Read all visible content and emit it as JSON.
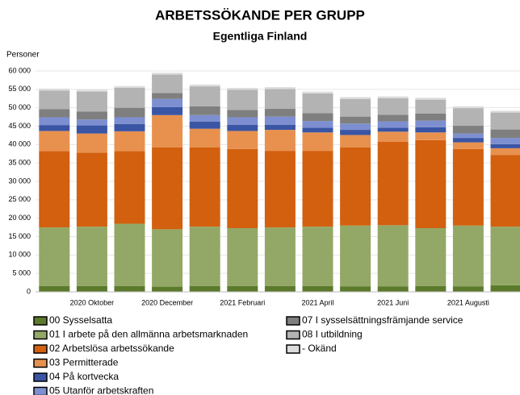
{
  "chart_data": {
    "type": "stacked-bar",
    "title": "ARBETSSÖKANDE PER GRUPP",
    "subtitle": "Egentliga Finland",
    "y_label": "Personer",
    "categories": [
      null,
      "2020 Oktober",
      null,
      "2020 December",
      null,
      "2021 Februari",
      null,
      "2021 April",
      null,
      "2021 Juni",
      null,
      "2021 Augusti",
      null
    ],
    "ylim": [
      0,
      60000
    ],
    "yticks": [
      0,
      {
        "value": 5000,
        "label": "5 000"
      },
      {
        "value": 10000,
        "label": "10 000"
      },
      {
        "value": 15000,
        "label": "15 000"
      },
      {
        "value": 20000,
        "label": "20 000"
      },
      {
        "value": 25000,
        "label": "25 000"
      },
      {
        "value": 30000,
        "label": "30 000"
      },
      {
        "value": 35000,
        "label": "35 000"
      },
      {
        "value": 40000,
        "label": "40 000"
      },
      {
        "value": 45000,
        "label": "45 000"
      },
      {
        "value": 50000,
        "label": "50 000"
      },
      {
        "value": 55000,
        "label": "55 000"
      },
      {
        "value": 60000,
        "label": "60 000"
      }
    ],
    "grid": true,
    "series": [
      {
        "name": "00 Sysselsatta",
        "color": "#5b7a2c",
        "values": [
          1600,
          1600,
          1600,
          1400,
          1600,
          1600,
          1600,
          1600,
          1500,
          1500,
          1600,
          1500,
          1800
        ]
      },
      {
        "name": "01 I arbete på den allmänna arbetsmarknaden",
        "color": "#93a866",
        "values": [
          15900,
          16100,
          16900,
          15600,
          16100,
          15700,
          15900,
          16100,
          16500,
          16600,
          15700,
          16500,
          15900
        ]
      },
      {
        "name": "02 Arbetslösa arbetssökande",
        "color": "#d2600f",
        "values": [
          20700,
          20100,
          19700,
          22200,
          21500,
          21500,
          20800,
          20600,
          21200,
          22700,
          23900,
          20800,
          19500
        ]
      },
      {
        "name": "03 Permitterade",
        "color": "#e8914f",
        "values": [
          5500,
          5200,
          5400,
          8800,
          5100,
          4900,
          5700,
          5000,
          3400,
          2700,
          2100,
          1800,
          1800
        ]
      },
      {
        "name": "04 På kortvecka",
        "color": "#3a55a4",
        "values": [
          1600,
          2200,
          2000,
          2200,
          1900,
          1700,
          1400,
          1300,
          1400,
          1100,
          1400,
          1200,
          1100
        ]
      },
      {
        "name": "05 Utanför arbetskraften",
        "color": "#7d8fd0",
        "values": [
          2100,
          1600,
          1800,
          2200,
          1800,
          2000,
          2200,
          1800,
          1700,
          1700,
          1800,
          1200,
          1700
        ]
      },
      {
        "name": "07 I sysselsättningsfrämjande service",
        "color": "#7f7f7f",
        "values": [
          2200,
          2200,
          2600,
          1600,
          2400,
          2000,
          2100,
          2100,
          1900,
          1800,
          1900,
          2100,
          2300
        ]
      },
      {
        "name": "08 I utbildning",
        "color": "#b3b3b3",
        "values": [
          5100,
          5400,
          5400,
          5000,
          5400,
          5500,
          5400,
          5400,
          4800,
          4500,
          3800,
          4800,
          4600
        ]
      },
      {
        "name": "- Okänd",
        "color": "#dcdcdc",
        "values": [
          500,
          500,
          500,
          500,
          500,
          500,
          500,
          500,
          500,
          500,
          500,
          500,
          500
        ]
      }
    ]
  }
}
